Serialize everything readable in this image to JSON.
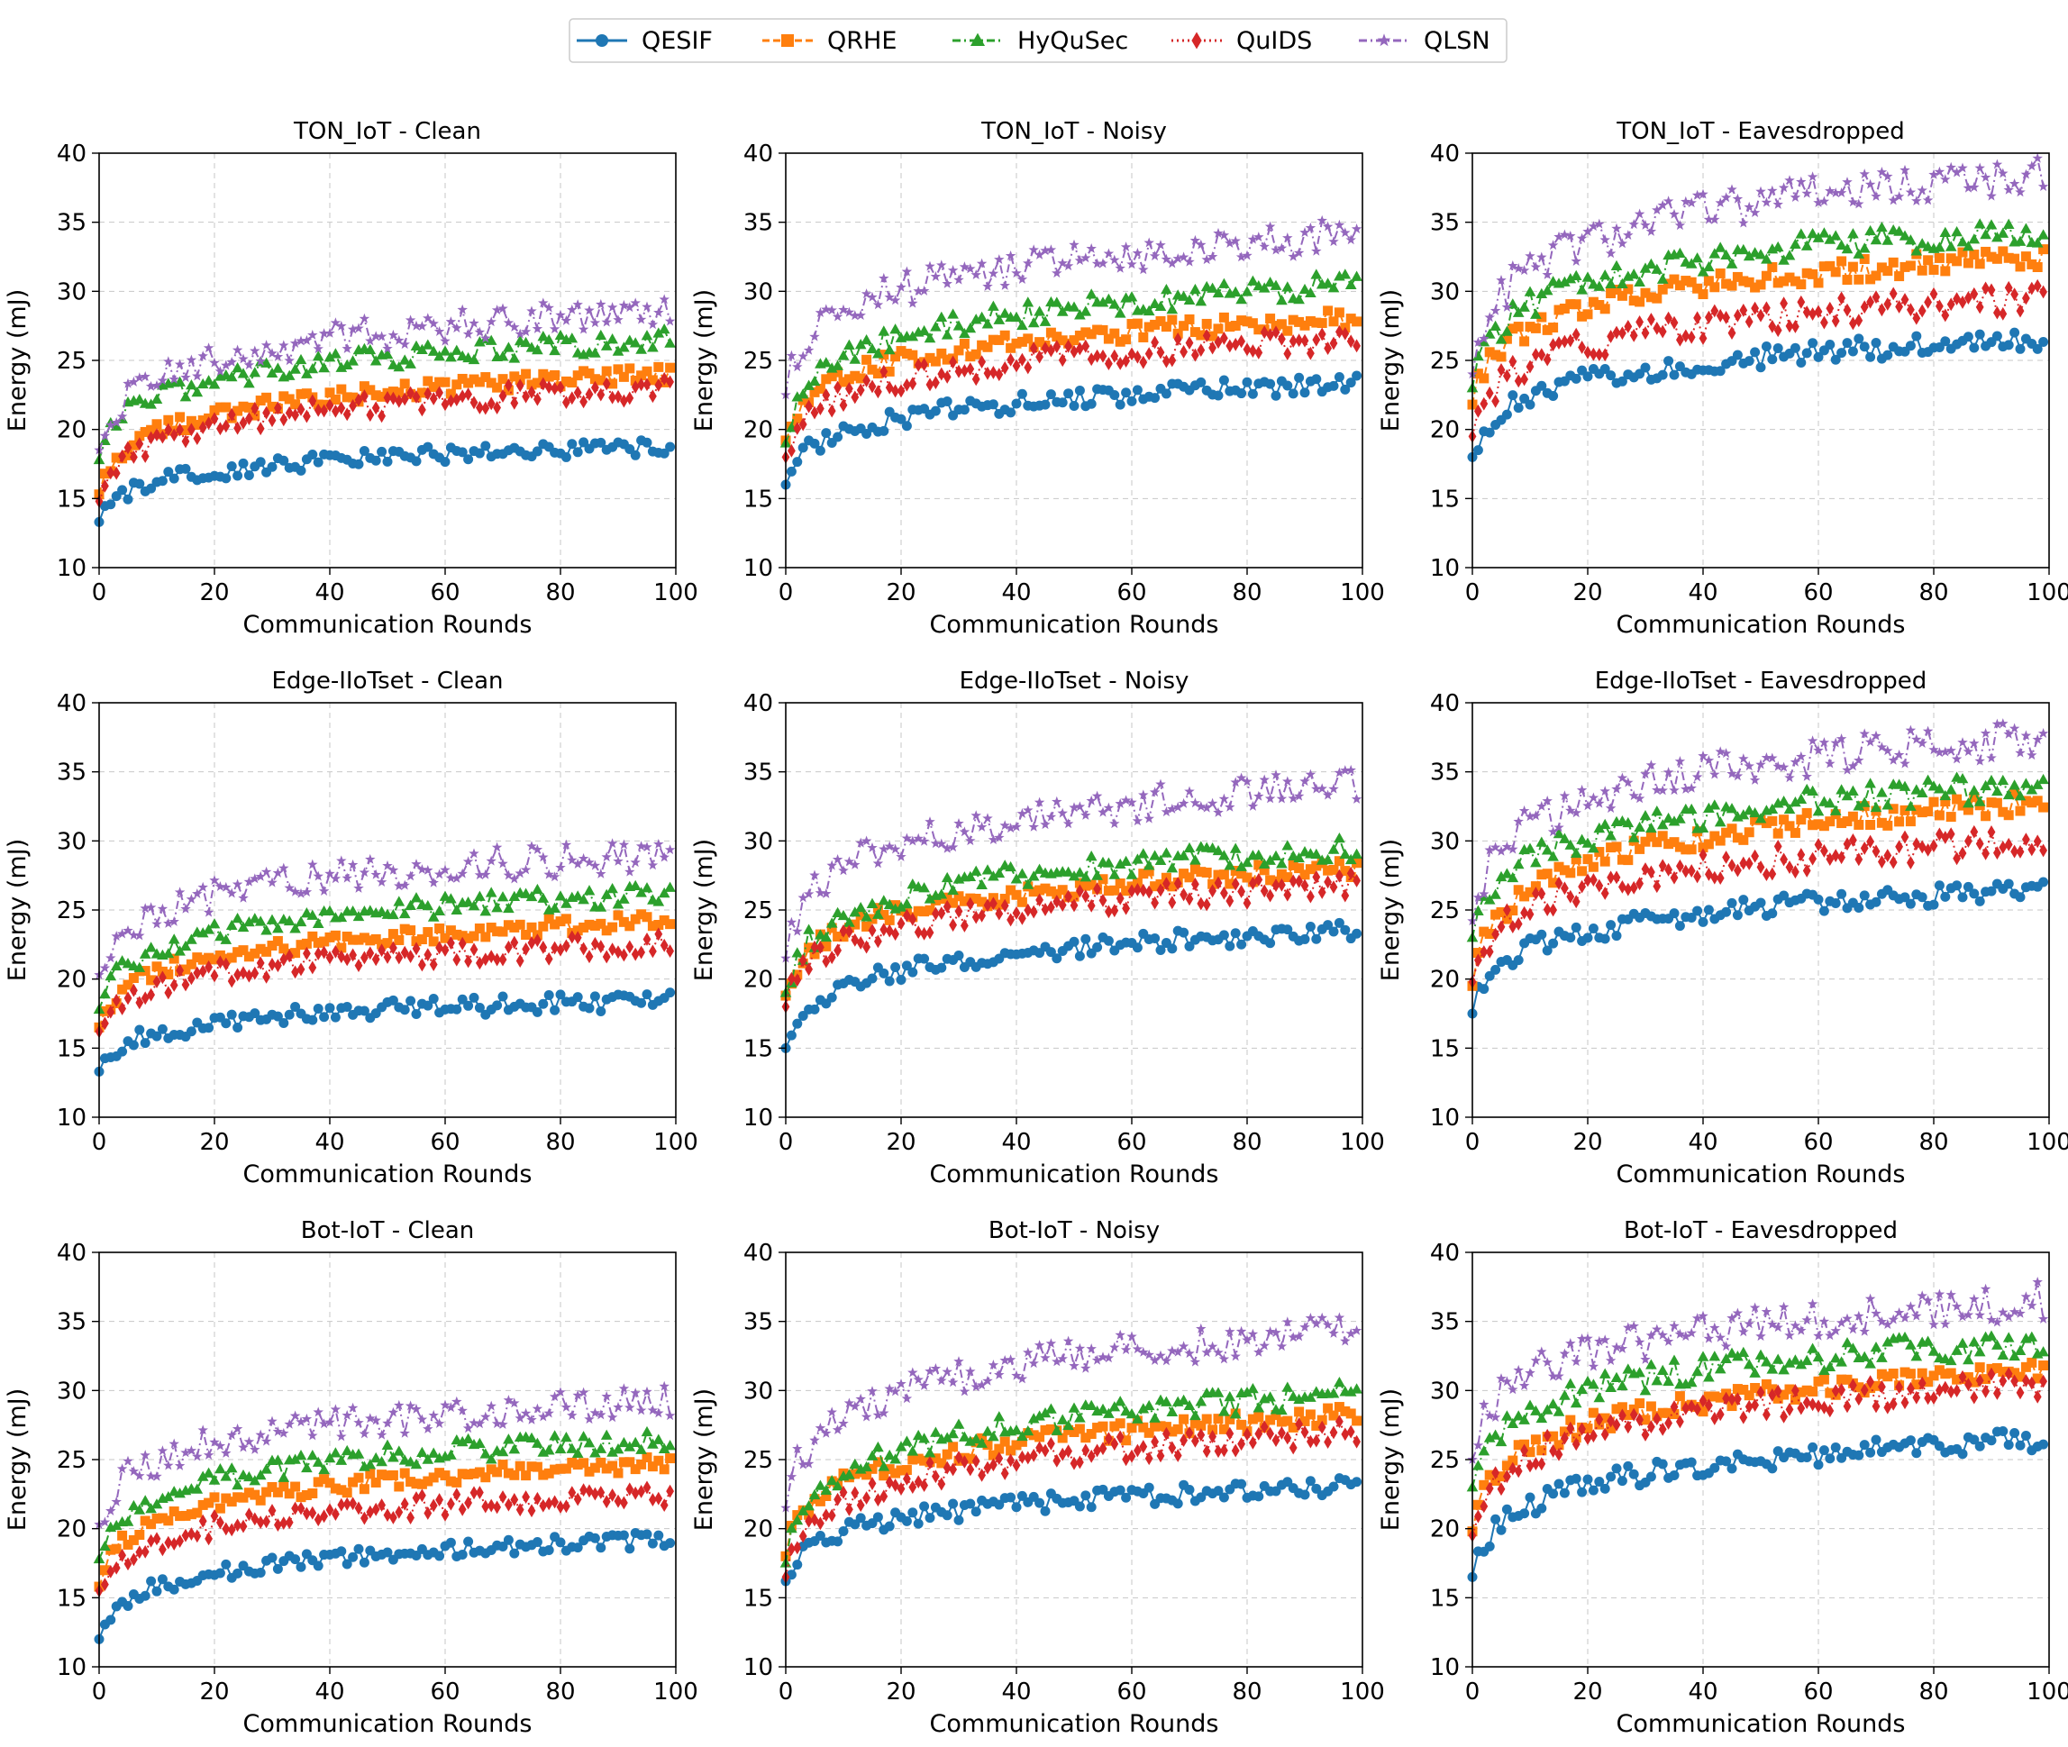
{
  "legend": {
    "entries": [
      {
        "name": "QESIF",
        "color": "#1f77b4",
        "marker": "circle",
        "dash": "solid"
      },
      {
        "name": "QRHE",
        "color": "#ff7f0e",
        "marker": "square",
        "dash": "dashed"
      },
      {
        "name": "HyQuSec",
        "color": "#2ca02c",
        "marker": "triangle",
        "dash": "dashdot"
      },
      {
        "name": "QuIDS",
        "color": "#d62728",
        "marker": "diamond",
        "dash": "dotted"
      },
      {
        "name": "QLSN",
        "color": "#9467bd",
        "marker": "star",
        "dash": "dashdot"
      }
    ],
    "placement": "top-center"
  },
  "chart_data": [
    {
      "type": "line",
      "title": "TON_IoT - Clean",
      "xlabel": "Communication Rounds",
      "ylabel": "Energy (mJ)",
      "xlim": [
        0,
        100
      ],
      "ylim": [
        10,
        40
      ],
      "xticks": [
        0,
        20,
        40,
        60,
        80,
        100
      ],
      "yticks": [
        10,
        15,
        20,
        25,
        30,
        35,
        40
      ],
      "grid": true,
      "series": [
        {
          "name": "QESIF",
          "start": 13.3,
          "end": 18.8,
          "noise": 0.6
        },
        {
          "name": "QRHE",
          "start": 15.3,
          "end": 24.0,
          "noise": 0.6
        },
        {
          "name": "HyQuSec",
          "start": 17.8,
          "end": 26.5,
          "noise": 0.8
        },
        {
          "name": "QuIDS",
          "start": 14.8,
          "end": 23.0,
          "noise": 0.8
        },
        {
          "name": "QLSN",
          "start": 18.5,
          "end": 28.5,
          "noise": 1.2
        }
      ]
    },
    {
      "type": "line",
      "title": "TON_IoT - Noisy",
      "xlabel": "Communication Rounds",
      "ylabel": "Energy (mJ)",
      "xlim": [
        0,
        100
      ],
      "ylim": [
        10,
        40
      ],
      "xticks": [
        0,
        20,
        40,
        60,
        80,
        100
      ],
      "yticks": [
        10,
        15,
        20,
        25,
        30,
        35,
        40
      ],
      "grid": true,
      "series": [
        {
          "name": "QESIF",
          "start": 16.0,
          "end": 23.3,
          "noise": 0.7
        },
        {
          "name": "QRHE",
          "start": 19.2,
          "end": 28.0,
          "noise": 0.7
        },
        {
          "name": "HyQuSec",
          "start": 19.0,
          "end": 30.5,
          "noise": 0.9
        },
        {
          "name": "QuIDS",
          "start": 18.0,
          "end": 26.5,
          "noise": 0.9
        },
        {
          "name": "QLSN",
          "start": 22.5,
          "end": 34.0,
          "noise": 1.3
        }
      ]
    },
    {
      "type": "line",
      "title": "TON_IoT - Eavesdropped",
      "xlabel": "Communication Rounds",
      "ylabel": "Energy (mJ)",
      "xlim": [
        0,
        100
      ],
      "ylim": [
        10,
        40
      ],
      "xticks": [
        0,
        20,
        40,
        60,
        80,
        100
      ],
      "yticks": [
        10,
        15,
        20,
        25,
        30,
        35,
        40
      ],
      "grid": true,
      "series": [
        {
          "name": "QESIF",
          "start": 18.0,
          "end": 26.5,
          "noise": 0.8
        },
        {
          "name": "QRHE",
          "start": 21.8,
          "end": 32.5,
          "noise": 0.8
        },
        {
          "name": "HyQuSec",
          "start": 23.0,
          "end": 34.5,
          "noise": 1.0
        },
        {
          "name": "QuIDS",
          "start": 19.5,
          "end": 29.5,
          "noise": 1.0
        },
        {
          "name": "QLSN",
          "start": 24.0,
          "end": 38.5,
          "noise": 1.4
        }
      ]
    },
    {
      "type": "line",
      "title": "Edge-IIoTset - Clean",
      "xlabel": "Communication Rounds",
      "ylabel": "Energy (mJ)",
      "xlim": [
        0,
        100
      ],
      "ylim": [
        10,
        40
      ],
      "xticks": [
        0,
        20,
        40,
        60,
        80,
        100
      ],
      "yticks": [
        10,
        15,
        20,
        25,
        30,
        35,
        40
      ],
      "grid": true,
      "series": [
        {
          "name": "QESIF",
          "start": 13.3,
          "end": 18.5,
          "noise": 0.7
        },
        {
          "name": "QRHE",
          "start": 16.5,
          "end": 24.2,
          "noise": 0.6
        },
        {
          "name": "HyQuSec",
          "start": 17.8,
          "end": 26.2,
          "noise": 0.8
        },
        {
          "name": "QuIDS",
          "start": 16.2,
          "end": 22.5,
          "noise": 0.8
        },
        {
          "name": "QLSN",
          "start": 20.3,
          "end": 29.0,
          "noise": 1.2
        }
      ]
    },
    {
      "type": "line",
      "title": "Edge-IIoTset - Noisy",
      "xlabel": "Communication Rounds",
      "ylabel": "Energy (mJ)",
      "xlim": [
        0,
        100
      ],
      "ylim": [
        10,
        40
      ],
      "xticks": [
        0,
        20,
        40,
        60,
        80,
        100
      ],
      "yticks": [
        10,
        15,
        20,
        25,
        30,
        35,
        40
      ],
      "grid": true,
      "series": [
        {
          "name": "QESIF",
          "start": 15.0,
          "end": 23.5,
          "noise": 0.7
        },
        {
          "name": "QRHE",
          "start": 18.8,
          "end": 28.0,
          "noise": 0.7
        },
        {
          "name": "HyQuSec",
          "start": 19.0,
          "end": 29.5,
          "noise": 0.9
        },
        {
          "name": "QuIDS",
          "start": 18.0,
          "end": 26.8,
          "noise": 0.9
        },
        {
          "name": "QLSN",
          "start": 21.5,
          "end": 34.0,
          "noise": 1.3
        }
      ]
    },
    {
      "type": "line",
      "title": "Edge-IIoTset - Eavesdropped",
      "xlabel": "Communication Rounds",
      "ylabel": "Energy (mJ)",
      "xlim": [
        0,
        100
      ],
      "ylim": [
        10,
        40
      ],
      "xticks": [
        0,
        20,
        40,
        60,
        80,
        100
      ],
      "yticks": [
        10,
        15,
        20,
        25,
        30,
        35,
        40
      ],
      "grid": true,
      "series": [
        {
          "name": "QESIF",
          "start": 17.5,
          "end": 26.5,
          "noise": 0.8
        },
        {
          "name": "QRHE",
          "start": 19.5,
          "end": 32.8,
          "noise": 0.8
        },
        {
          "name": "HyQuSec",
          "start": 23.0,
          "end": 34.0,
          "noise": 1.0
        },
        {
          "name": "QuIDS",
          "start": 19.8,
          "end": 30.0,
          "noise": 1.0
        },
        {
          "name": "QLSN",
          "start": 24.2,
          "end": 37.5,
          "noise": 1.4
        }
      ]
    },
    {
      "type": "line",
      "title": "Bot-IoT - Clean",
      "xlabel": "Communication Rounds",
      "ylabel": "Energy (mJ)",
      "xlim": [
        0,
        100
      ],
      "ylim": [
        10,
        40
      ],
      "xticks": [
        0,
        20,
        40,
        60,
        80,
        100
      ],
      "yticks": [
        10,
        15,
        20,
        25,
        30,
        35,
        40
      ],
      "grid": true,
      "series": [
        {
          "name": "QESIF",
          "start": 12.0,
          "end": 19.2,
          "noise": 0.6
        },
        {
          "name": "QRHE",
          "start": 15.8,
          "end": 24.8,
          "noise": 0.6
        },
        {
          "name": "HyQuSec",
          "start": 17.8,
          "end": 26.5,
          "noise": 0.8
        },
        {
          "name": "QuIDS",
          "start": 15.5,
          "end": 22.5,
          "noise": 0.8
        },
        {
          "name": "QLSN",
          "start": 20.3,
          "end": 29.2,
          "noise": 1.2
        }
      ]
    },
    {
      "type": "line",
      "title": "Bot-IoT - Noisy",
      "xlabel": "Communication Rounds",
      "ylabel": "Energy (mJ)",
      "xlim": [
        0,
        100
      ],
      "ylim": [
        10,
        40
      ],
      "xticks": [
        0,
        20,
        40,
        60,
        80,
        100
      ],
      "yticks": [
        10,
        15,
        20,
        25,
        30,
        35,
        40
      ],
      "grid": true,
      "series": [
        {
          "name": "QESIF",
          "start": 16.2,
          "end": 23.0,
          "noise": 0.7
        },
        {
          "name": "QRHE",
          "start": 18.0,
          "end": 28.2,
          "noise": 0.7
        },
        {
          "name": "HyQuSec",
          "start": 17.5,
          "end": 29.8,
          "noise": 0.9
        },
        {
          "name": "QuIDS",
          "start": 16.5,
          "end": 27.0,
          "noise": 0.9
        },
        {
          "name": "QLSN",
          "start": 21.5,
          "end": 34.2,
          "noise": 1.3
        }
      ]
    },
    {
      "type": "line",
      "title": "Bot-IoT - Eavesdropped",
      "xlabel": "Communication Rounds",
      "ylabel": "Energy (mJ)",
      "xlim": [
        0,
        100
      ],
      "ylim": [
        10,
        40
      ],
      "xticks": [
        0,
        20,
        40,
        60,
        80,
        100
      ],
      "yticks": [
        10,
        15,
        20,
        25,
        30,
        35,
        40
      ],
      "grid": true,
      "series": [
        {
          "name": "QESIF",
          "start": 16.5,
          "end": 26.5,
          "noise": 0.8
        },
        {
          "name": "QRHE",
          "start": 19.8,
          "end": 31.5,
          "noise": 0.8
        },
        {
          "name": "HyQuSec",
          "start": 23.0,
          "end": 33.5,
          "noise": 1.0
        },
        {
          "name": "QuIDS",
          "start": 19.5,
          "end": 30.5,
          "noise": 1.0
        },
        {
          "name": "QLSN",
          "start": 25.0,
          "end": 36.5,
          "noise": 1.4
        }
      ]
    }
  ]
}
